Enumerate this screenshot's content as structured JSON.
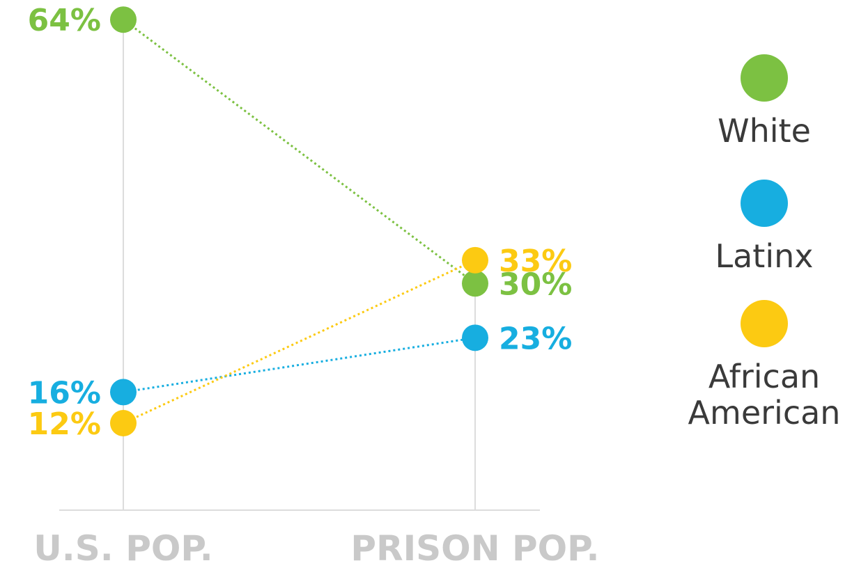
{
  "chart_data": {
    "type": "slope",
    "categories": [
      "U.S. POP.",
      "PRISON POP."
    ],
    "unit": "%",
    "series": [
      {
        "name": "White",
        "legend_lines": [
          "White"
        ],
        "values": [
          64,
          30
        ],
        "color": "#7cc142"
      },
      {
        "name": "Latinx",
        "legend_lines": [
          "Latinx"
        ],
        "values": [
          16,
          23
        ],
        "color": "#17aee0"
      },
      {
        "name": "African American",
        "legend_lines": [
          "African",
          "American"
        ],
        "values": [
          12,
          33
        ],
        "color": "#fcca12"
      }
    ],
    "value_labels": {
      "White": [
        "64%",
        "30%"
      ],
      "Latinx": [
        "16%",
        "23%"
      ],
      "African American": [
        "12%",
        "33%"
      ]
    },
    "legend_position": "right",
    "line_style": "dotted",
    "grid": false
  }
}
